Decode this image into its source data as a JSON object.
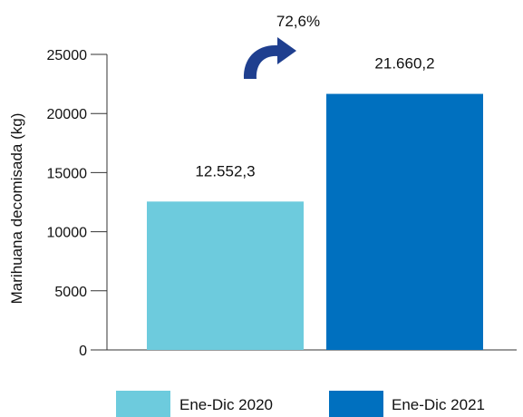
{
  "chart_data": {
    "type": "bar",
    "categories": [
      "Ene-Dic 2020",
      "Ene-Dic 2021"
    ],
    "values": [
      12552.3,
      21660.2
    ],
    "value_labels": [
      "12.552,3",
      "21.660,2"
    ],
    "colors": [
      "#6DCBDD",
      "#0070BF"
    ],
    "ylabel": "Marihuana decomisada (kg)",
    "ylim": [
      0,
      25000
    ],
    "yticks": [
      0,
      5000,
      10000,
      15000,
      20000,
      25000
    ],
    "ytick_labels": [
      "0",
      "5000",
      "10000",
      "15000",
      "20000",
      "25000"
    ],
    "grid": false,
    "legend": {
      "position": "bottom",
      "entries": [
        "Ene-Dic 2020",
        "Ene-Dic 2021"
      ]
    },
    "annotation": {
      "text": "72,6%",
      "arrow_color": "#1F3F8F"
    }
  }
}
